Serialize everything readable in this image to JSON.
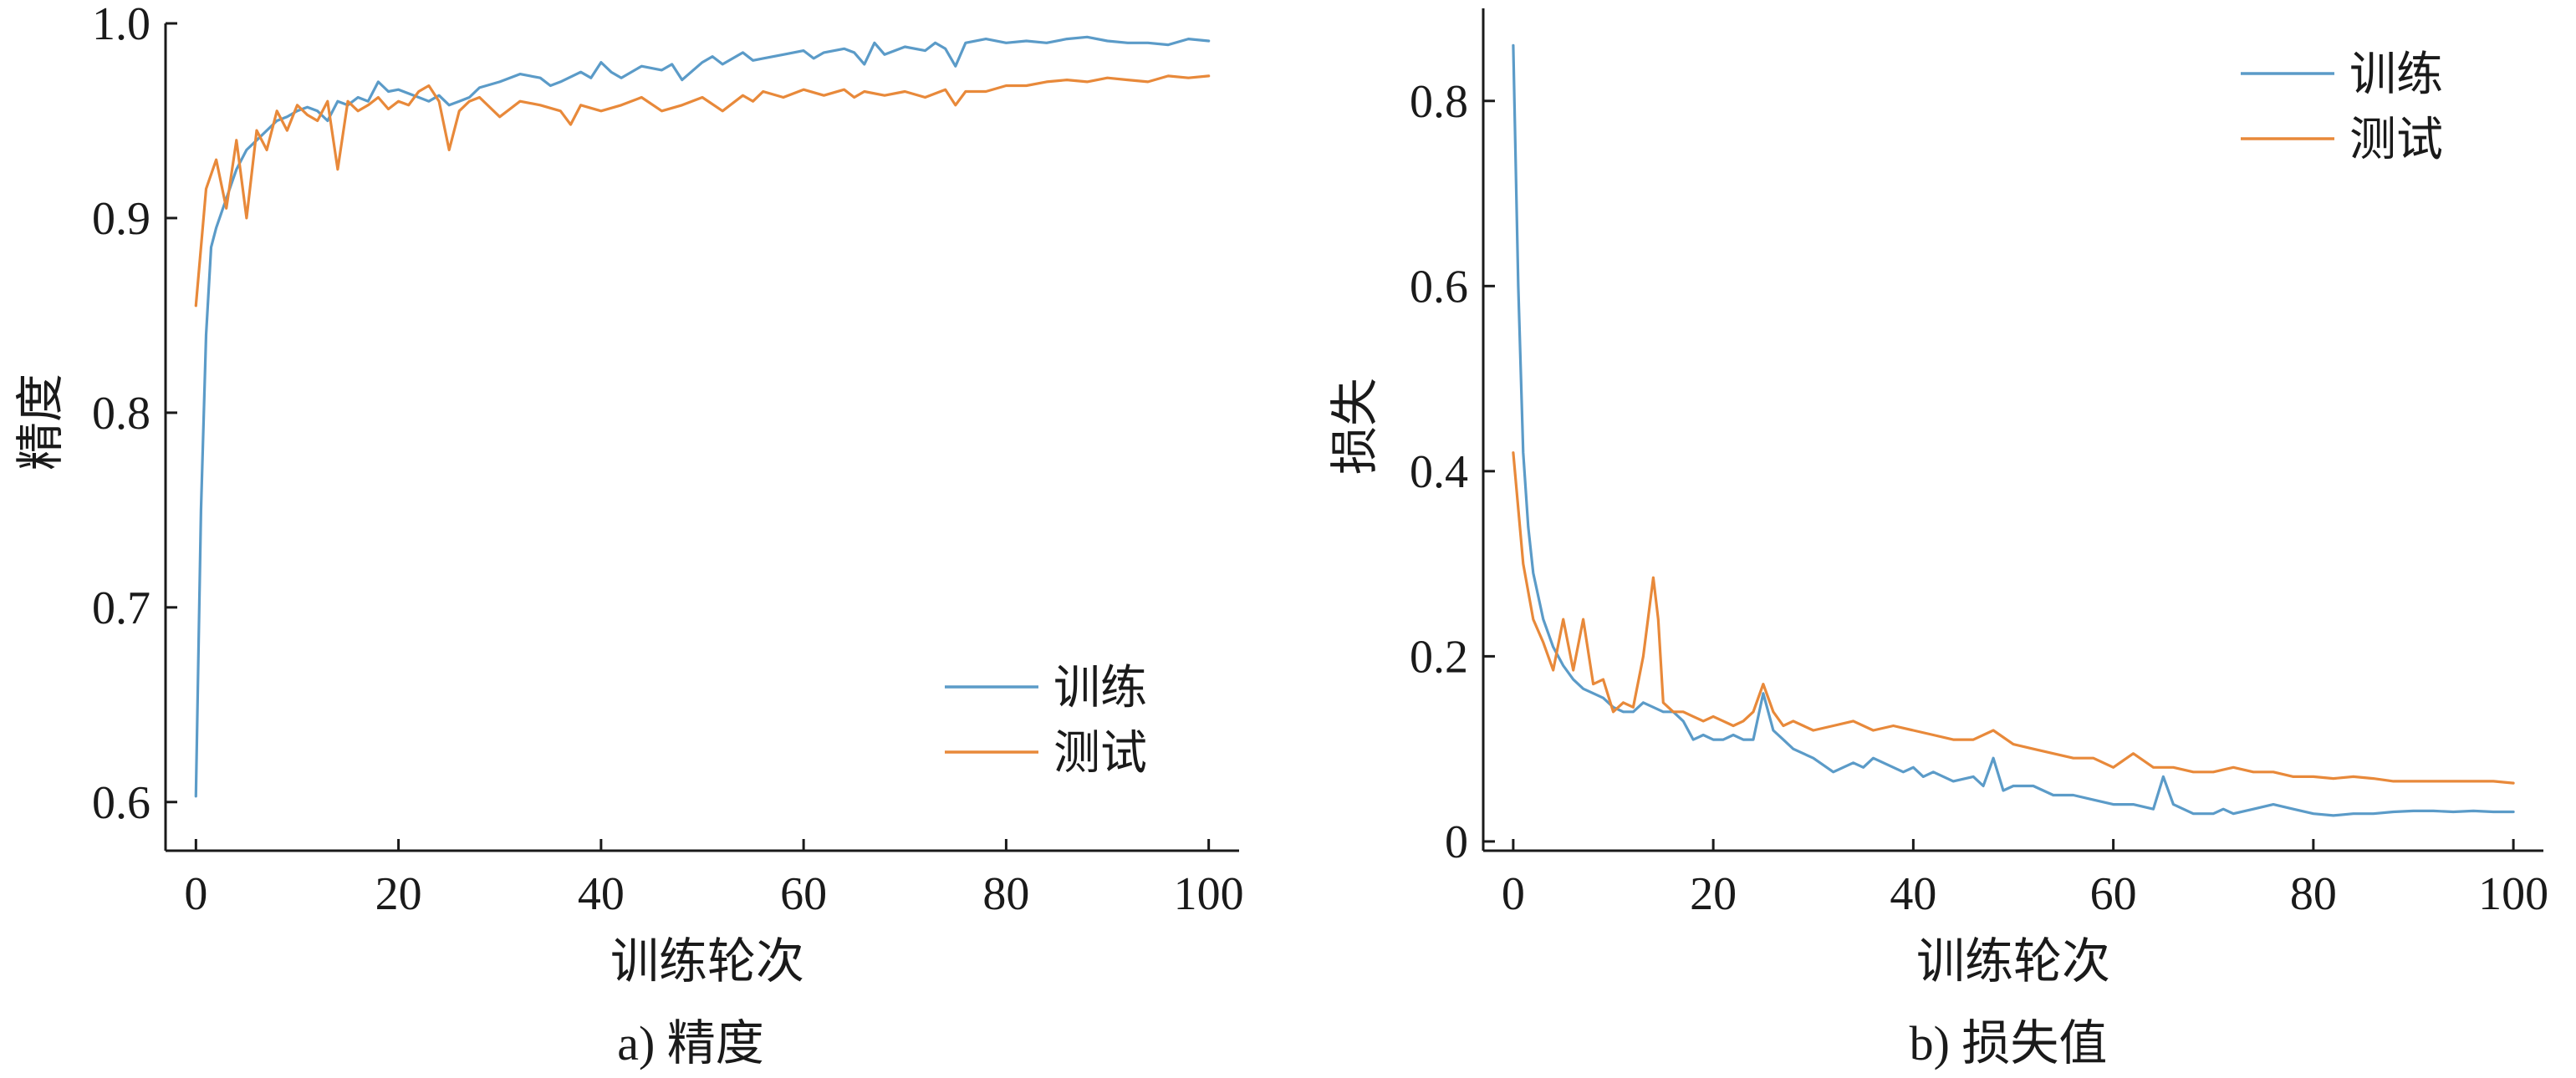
{
  "colors": {
    "train": "#5b9bc8",
    "test": "#e8893a",
    "axis": "#1a1a1a"
  },
  "chart_data": [
    {
      "type": "line",
      "caption": "a) 精度",
      "xlabel": "训练轮次",
      "ylabel": "精度",
      "xlim": [
        -3,
        103
      ],
      "ylim": [
        0.575,
        1.0
      ],
      "xticks": [
        0,
        20,
        40,
        60,
        80,
        100
      ],
      "xtick_labels": [
        "0",
        "20",
        "40",
        "60",
        "80",
        "100"
      ],
      "yticks": [
        0.6,
        0.7,
        0.8,
        0.9,
        1.0
      ],
      "ytick_labels": [
        "0.6",
        "0.7",
        "0.8",
        "0.9",
        "1.0"
      ],
      "legend_position": "bottom-right",
      "grid": false,
      "series": [
        {
          "name": "训练",
          "color_key": "train",
          "x": [
            0,
            0.5,
            1,
            1.5,
            2,
            3,
            4,
            5,
            6,
            7,
            8,
            9,
            10,
            11,
            12,
            13,
            14,
            15,
            16,
            17,
            18,
            19,
            20,
            21,
            22,
            23,
            24,
            25,
            26,
            27,
            28,
            30,
            32,
            34,
            35,
            36,
            38,
            39,
            40,
            41,
            42,
            44,
            46,
            47,
            48,
            50,
            51,
            52,
            54,
            55,
            56,
            58,
            60,
            61,
            62,
            64,
            65,
            66,
            67,
            68,
            70,
            72,
            73,
            74,
            75,
            76,
            78,
            80,
            82,
            84,
            86,
            88,
            90,
            92,
            94,
            96,
            98,
            100
          ],
          "y": [
            0.603,
            0.75,
            0.84,
            0.885,
            0.895,
            0.91,
            0.925,
            0.935,
            0.94,
            0.945,
            0.95,
            0.952,
            0.955,
            0.957,
            0.955,
            0.95,
            0.96,
            0.958,
            0.962,
            0.96,
            0.97,
            0.965,
            0.966,
            0.964,
            0.962,
            0.96,
            0.963,
            0.958,
            0.96,
            0.962,
            0.967,
            0.97,
            0.974,
            0.972,
            0.968,
            0.97,
            0.975,
            0.972,
            0.98,
            0.975,
            0.972,
            0.978,
            0.976,
            0.979,
            0.971,
            0.98,
            0.983,
            0.979,
            0.985,
            0.981,
            0.982,
            0.984,
            0.986,
            0.982,
            0.985,
            0.987,
            0.985,
            0.979,
            0.99,
            0.984,
            0.988,
            0.986,
            0.99,
            0.987,
            0.978,
            0.99,
            0.992,
            0.99,
            0.991,
            0.99,
            0.992,
            0.993,
            0.991,
            0.99,
            0.99,
            0.989,
            0.992,
            0.991
          ]
        },
        {
          "name": "测试",
          "color_key": "test",
          "x": [
            0,
            1,
            2,
            3,
            4,
            5,
            6,
            7,
            8,
            9,
            10,
            11,
            12,
            13,
            14,
            15,
            16,
            17,
            18,
            19,
            20,
            21,
            22,
            23,
            24,
            25,
            26,
            27,
            28,
            30,
            32,
            34,
            36,
            37,
            38,
            40,
            42,
            44,
            46,
            48,
            50,
            52,
            54,
            55,
            56,
            58,
            60,
            62,
            64,
            65,
            66,
            68,
            70,
            72,
            74,
            75,
            76,
            78,
            80,
            82,
            84,
            86,
            88,
            90,
            92,
            94,
            96,
            98,
            100
          ],
          "y": [
            0.855,
            0.915,
            0.93,
            0.905,
            0.94,
            0.9,
            0.945,
            0.935,
            0.955,
            0.945,
            0.958,
            0.953,
            0.95,
            0.96,
            0.925,
            0.96,
            0.955,
            0.958,
            0.962,
            0.956,
            0.96,
            0.958,
            0.965,
            0.968,
            0.96,
            0.935,
            0.955,
            0.96,
            0.962,
            0.952,
            0.96,
            0.958,
            0.955,
            0.948,
            0.958,
            0.955,
            0.958,
            0.962,
            0.955,
            0.958,
            0.962,
            0.955,
            0.963,
            0.96,
            0.965,
            0.962,
            0.966,
            0.963,
            0.966,
            0.962,
            0.965,
            0.963,
            0.965,
            0.962,
            0.966,
            0.958,
            0.965,
            0.965,
            0.968,
            0.968,
            0.97,
            0.971,
            0.97,
            0.972,
            0.971,
            0.97,
            0.973,
            0.972,
            0.973
          ]
        }
      ]
    },
    {
      "type": "line",
      "caption": "b) 损失值",
      "xlabel": "训练轮次",
      "ylabel": "损失",
      "xlim": [
        -3,
        103
      ],
      "ylim": [
        -0.01,
        0.9
      ],
      "xticks": [
        0,
        20,
        40,
        60,
        80,
        100
      ],
      "xtick_labels": [
        "0",
        "20",
        "40",
        "60",
        "80",
        "100"
      ],
      "yticks": [
        0,
        0.2,
        0.4,
        0.6,
        0.8
      ],
      "ytick_labels": [
        "0",
        "0.2",
        "0.4",
        "0.6",
        "0.8"
      ],
      "legend_position": "top-right",
      "grid": false,
      "series": [
        {
          "name": "训练",
          "color_key": "train",
          "x": [
            0,
            0.5,
            1,
            1.5,
            2,
            3,
            4,
            5,
            6,
            7,
            8,
            9,
            10,
            11,
            12,
            13,
            14,
            15,
            16,
            17,
            18,
            19,
            20,
            21,
            22,
            23,
            24,
            25,
            26,
            27,
            28,
            30,
            32,
            33,
            34,
            35,
            36,
            38,
            39,
            40,
            41,
            42,
            44,
            46,
            47,
            48,
            49,
            50,
            52,
            54,
            56,
            58,
            60,
            62,
            64,
            65,
            66,
            68,
            70,
            71,
            72,
            74,
            76,
            78,
            80,
            82,
            84,
            86,
            88,
            90,
            92,
            94,
            96,
            98,
            100
          ],
          "y": [
            0.86,
            0.6,
            0.42,
            0.34,
            0.29,
            0.24,
            0.21,
            0.19,
            0.175,
            0.165,
            0.16,
            0.155,
            0.145,
            0.14,
            0.14,
            0.15,
            0.145,
            0.14,
            0.14,
            0.13,
            0.11,
            0.115,
            0.11,
            0.11,
            0.115,
            0.11,
            0.11,
            0.16,
            0.12,
            0.11,
            0.1,
            0.09,
            0.075,
            0.08,
            0.085,
            0.08,
            0.09,
            0.08,
            0.075,
            0.08,
            0.07,
            0.075,
            0.065,
            0.07,
            0.06,
            0.09,
            0.055,
            0.06,
            0.06,
            0.05,
            0.05,
            0.045,
            0.04,
            0.04,
            0.035,
            0.07,
            0.04,
            0.03,
            0.03,
            0.035,
            0.03,
            0.035,
            0.04,
            0.035,
            0.03,
            0.028,
            0.03,
            0.03,
            0.032,
            0.033,
            0.033,
            0.032,
            0.033,
            0.032,
            0.032
          ]
        },
        {
          "name": "测试",
          "color_key": "test",
          "x": [
            0,
            1,
            2,
            3,
            4,
            5,
            6,
            7,
            8,
            9,
            10,
            11,
            12,
            13,
            14,
            14.5,
            15,
            16,
            17,
            18,
            19,
            20,
            21,
            22,
            23,
            24,
            25,
            26,
            27,
            28,
            30,
            32,
            34,
            36,
            38,
            40,
            42,
            44,
            46,
            48,
            50,
            52,
            54,
            56,
            58,
            60,
            62,
            64,
            66,
            68,
            70,
            72,
            74,
            76,
            78,
            80,
            82,
            84,
            86,
            88,
            90,
            92,
            94,
            96,
            98,
            100
          ],
          "y": [
            0.42,
            0.3,
            0.24,
            0.215,
            0.185,
            0.24,
            0.185,
            0.24,
            0.17,
            0.175,
            0.14,
            0.15,
            0.145,
            0.2,
            0.285,
            0.24,
            0.15,
            0.14,
            0.14,
            0.135,
            0.13,
            0.135,
            0.13,
            0.125,
            0.13,
            0.14,
            0.17,
            0.14,
            0.125,
            0.13,
            0.12,
            0.125,
            0.13,
            0.12,
            0.125,
            0.12,
            0.115,
            0.11,
            0.11,
            0.12,
            0.105,
            0.1,
            0.095,
            0.09,
            0.09,
            0.08,
            0.095,
            0.08,
            0.08,
            0.075,
            0.075,
            0.08,
            0.075,
            0.075,
            0.07,
            0.07,
            0.068,
            0.07,
            0.068,
            0.065,
            0.065,
            0.065,
            0.065,
            0.065,
            0.065,
            0.063
          ]
        }
      ]
    }
  ]
}
